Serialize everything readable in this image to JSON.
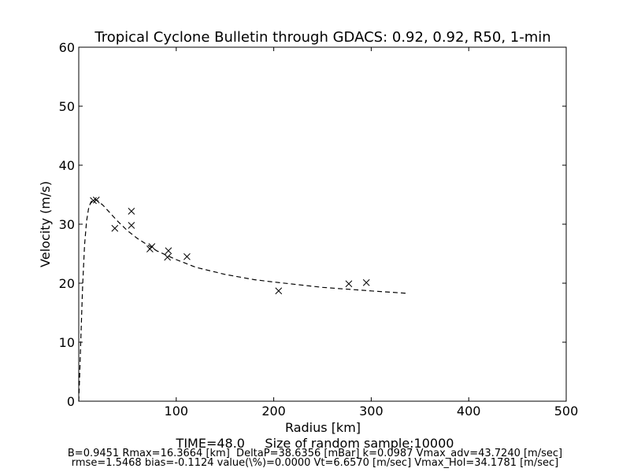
{
  "chart_data": {
    "type": "scatter",
    "title": "Tropical Cyclone Bulletin through GDACS: 0.92, 0.92, R50, 1-min",
    "xlabel": "Radius [km]",
    "ylabel": "Velocity (m/s)",
    "xlim": [
      0,
      500
    ],
    "ylim": [
      0,
      60
    ],
    "xticks": [
      100,
      200,
      300,
      400,
      500
    ],
    "yticks": [
      0,
      10,
      20,
      30,
      40,
      50,
      60
    ],
    "grid": false,
    "series": [
      {
        "marker": "x",
        "color": "#000000",
        "points": [
          [
            15,
            34.0
          ],
          [
            18,
            34.1
          ],
          [
            37,
            29.3
          ],
          [
            54,
            32.2
          ],
          [
            54,
            29.8
          ],
          [
            73,
            25.8
          ],
          [
            75,
            26.2
          ],
          [
            91,
            24.4
          ],
          [
            92,
            25.5
          ],
          [
            111,
            24.5
          ],
          [
            205,
            18.7
          ],
          [
            277,
            19.9
          ],
          [
            295,
            20.1
          ]
        ]
      },
      {
        "style": "dashed",
        "color": "#000000",
        "x": [
          0,
          1,
          2,
          4,
          6,
          8,
          10,
          12,
          14,
          16,
          18,
          20,
          25,
          30,
          40,
          50,
          60,
          80,
          100,
          120,
          150,
          180,
          200,
          250,
          300,
          336
        ],
        "y": [
          0,
          4.5,
          10.0,
          19.8,
          26.5,
          30.5,
          32.6,
          33.6,
          34.1,
          34.2,
          34.1,
          33.9,
          33.2,
          32.3,
          30.5,
          28.9,
          27.6,
          25.5,
          24.0,
          22.7,
          21.5,
          20.6,
          20.2,
          19.3,
          18.7,
          18.3
        ]
      }
    ]
  },
  "footer": {
    "time_line": "TIME=48.0     Size of random sample:10000",
    "stats_line_1": "B=0.9451 Rmax=16.3664 [km]  DeltaP=38.6356 [mBar] k=0.0987 Vmax_adv=43.7240 [m/sec]",
    "stats_line_2": "rmse=1.5468 bias=-0.1124 value(\\%)=0.0000 Vt=6.6570 [m/sec] Vmax_Hol=34.1781 [m/sec]"
  }
}
